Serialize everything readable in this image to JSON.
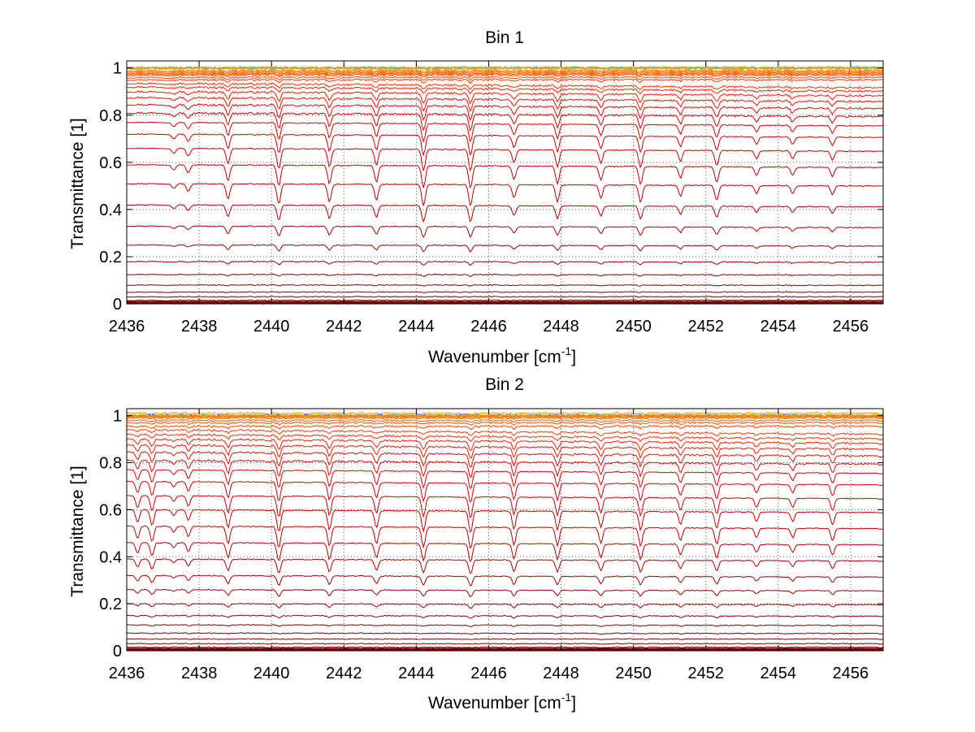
{
  "chart_data": [
    {
      "type": "line",
      "title": "Bin 1",
      "xlabel": "Wavenumber [cm",
      "xlabel_sup": "-1",
      "xlabel_end": "]",
      "ylabel": "Transmittance [1]",
      "xlim": [
        2436,
        2456.9
      ],
      "ylim": [
        0,
        1.03
      ],
      "grid": true,
      "legend": "none",
      "x_ticks": [
        "2436",
        "2438",
        "2440",
        "2442",
        "2444",
        "2446",
        "2448",
        "2450",
        "2452",
        "2454",
        "2456"
      ],
      "y_ticks": [
        "0",
        "0.2",
        "0.4",
        "0.6",
        "0.8",
        "1"
      ],
      "x_tick_values": [
        2436,
        2438,
        2440,
        2442,
        2444,
        2446,
        2448,
        2450,
        2452,
        2454,
        2456
      ],
      "y_tick_values": [
        0,
        0.2,
        0.4,
        0.6,
        0.8,
        1
      ],
      "absorption_lines": [
        {
          "x": 2437.3,
          "depth": 0.1,
          "width": 0.07
        },
        {
          "x": 2437.7,
          "depth": 0.16,
          "width": 0.07
        },
        {
          "x": 2438.8,
          "depth": 0.3,
          "width": 0.07
        },
        {
          "x": 2440.2,
          "depth": 0.4,
          "width": 0.07
        },
        {
          "x": 2441.6,
          "depth": 0.36,
          "width": 0.07
        },
        {
          "x": 2442.9,
          "depth": 0.32,
          "width": 0.07
        },
        {
          "x": 2444.2,
          "depth": 0.42,
          "width": 0.07
        },
        {
          "x": 2445.5,
          "depth": 0.42,
          "width": 0.07
        },
        {
          "x": 2446.7,
          "depth": 0.26,
          "width": 0.07
        },
        {
          "x": 2447.9,
          "depth": 0.34,
          "width": 0.07
        },
        {
          "x": 2449.1,
          "depth": 0.26,
          "width": 0.07
        },
        {
          "x": 2450.2,
          "depth": 0.34,
          "width": 0.07
        },
        {
          "x": 2451.3,
          "depth": 0.22,
          "width": 0.07
        },
        {
          "x": 2452.3,
          "depth": 0.3,
          "width": 0.07
        },
        {
          "x": 2453.4,
          "depth": 0.16,
          "width": 0.07
        },
        {
          "x": 2454.4,
          "depth": 0.16,
          "width": 0.07
        },
        {
          "x": 2455.5,
          "depth": 0.18,
          "width": 0.07
        }
      ],
      "series_continuum": [
        1.0,
        0.99,
        0.985,
        0.98,
        0.975,
        0.97,
        0.96,
        0.95,
        0.935,
        0.92,
        0.9,
        0.875,
        0.845,
        0.81,
        0.77,
        0.72,
        0.66,
        0.59,
        0.51,
        0.42,
        0.33,
        0.25,
        0.18,
        0.125,
        0.08,
        0.05,
        0.03,
        0.015,
        0.007,
        0.003
      ],
      "series_colors": [
        "#ff8c00",
        "#ff8000",
        "#ff7400",
        "#ff6800",
        "#ff5c00",
        "#ff5000",
        "#ff4400",
        "#ff3800",
        "#ff2c00",
        "#ff2000",
        "#f81800",
        "#f01000",
        "#e80800",
        "#e00000",
        "#d80000",
        "#d00000",
        "#c80000",
        "#c00000",
        "#b80000",
        "#b00000",
        "#a80000",
        "#a00000",
        "#980000",
        "#900000",
        "#880000",
        "#800000",
        "#800000",
        "#7a0000",
        "#760000",
        "#700000"
      ],
      "noise_colors": [
        "#00b0ff",
        "#40c0a0",
        "#a0d020",
        "#ffb000"
      ]
    },
    {
      "type": "line",
      "title": "Bin 2",
      "xlabel": "Wavenumber [cm",
      "xlabel_sup": "-1",
      "xlabel_end": "]",
      "ylabel": "Transmittance [1]",
      "xlim": [
        2436,
        2456.9
      ],
      "ylim": [
        0,
        1.03
      ],
      "grid": true,
      "legend": "none",
      "x_ticks": [
        "2436",
        "2438",
        "2440",
        "2442",
        "2444",
        "2446",
        "2448",
        "2450",
        "2452",
        "2454",
        "2456"
      ],
      "y_ticks": [
        "0",
        "0.2",
        "0.4",
        "0.6",
        "0.8",
        "1"
      ],
      "x_tick_values": [
        2436,
        2438,
        2440,
        2442,
        2444,
        2446,
        2448,
        2450,
        2452,
        2454,
        2456
      ],
      "y_tick_values": [
        0,
        0.2,
        0.4,
        0.6,
        0.8,
        1
      ],
      "absorption_lines": [
        {
          "x": 2436.3,
          "depth": 0.25,
          "width": 0.07
        },
        {
          "x": 2436.7,
          "depth": 0.3,
          "width": 0.07
        },
        {
          "x": 2437.3,
          "depth": 0.12,
          "width": 0.07
        },
        {
          "x": 2437.7,
          "depth": 0.2,
          "width": 0.07
        },
        {
          "x": 2438.8,
          "depth": 0.34,
          "width": 0.07
        },
        {
          "x": 2440.2,
          "depth": 0.42,
          "width": 0.07
        },
        {
          "x": 2441.6,
          "depth": 0.38,
          "width": 0.07
        },
        {
          "x": 2442.9,
          "depth": 0.34,
          "width": 0.07
        },
        {
          "x": 2444.2,
          "depth": 0.4,
          "width": 0.07
        },
        {
          "x": 2445.5,
          "depth": 0.42,
          "width": 0.07
        },
        {
          "x": 2446.7,
          "depth": 0.34,
          "width": 0.07
        },
        {
          "x": 2447.9,
          "depth": 0.36,
          "width": 0.07
        },
        {
          "x": 2449.1,
          "depth": 0.3,
          "width": 0.07
        },
        {
          "x": 2450.2,
          "depth": 0.36,
          "width": 0.07
        },
        {
          "x": 2451.3,
          "depth": 0.24,
          "width": 0.07
        },
        {
          "x": 2452.3,
          "depth": 0.32,
          "width": 0.07
        },
        {
          "x": 2453.4,
          "depth": 0.18,
          "width": 0.07
        },
        {
          "x": 2454.4,
          "depth": 0.18,
          "width": 0.07
        },
        {
          "x": 2455.5,
          "depth": 0.24,
          "width": 0.07
        }
      ],
      "series_continuum": [
        1.01,
        1.0,
        0.995,
        0.99,
        0.98,
        0.97,
        0.955,
        0.94,
        0.92,
        0.9,
        0.875,
        0.845,
        0.81,
        0.77,
        0.72,
        0.66,
        0.6,
        0.53,
        0.46,
        0.39,
        0.32,
        0.26,
        0.2,
        0.15,
        0.11,
        0.075,
        0.05,
        0.03,
        0.015,
        0.007
      ],
      "series_colors": [
        "#ff8c00",
        "#ff8000",
        "#ff7400",
        "#ff6800",
        "#ff5c00",
        "#ff5000",
        "#ff4400",
        "#ff3800",
        "#ff2c00",
        "#ff2000",
        "#f81800",
        "#f01000",
        "#e80800",
        "#e00000",
        "#d80000",
        "#d00000",
        "#c80000",
        "#c00000",
        "#b80000",
        "#b00000",
        "#a80000",
        "#a00000",
        "#980000",
        "#900000",
        "#880000",
        "#800000",
        "#800000",
        "#7a0000",
        "#760000",
        "#700000"
      ],
      "noise_colors": [
        "#00b0ff",
        "#3050ff",
        "#a0d020",
        "#ffb000"
      ]
    }
  ]
}
